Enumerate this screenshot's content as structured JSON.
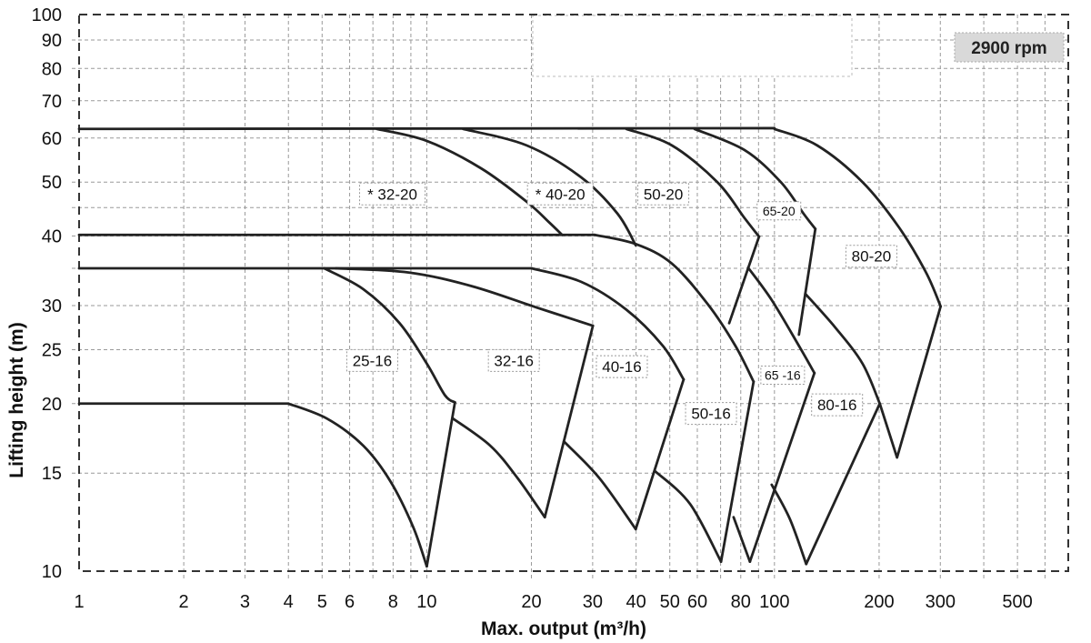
{
  "chart_data": {
    "type": "line",
    "title": "",
    "badge": "2900 rpm",
    "xlabel": "Max. output (m³/h)",
    "ylabel": "Lifting height (m)",
    "xscale": "log",
    "yscale": "log",
    "xlim": [
      1,
      700
    ],
    "ylim": [
      10,
      100
    ],
    "grid": true,
    "x_ticks": [
      1,
      2,
      3,
      4,
      5,
      6,
      8,
      10,
      20,
      30,
      40,
      50,
      60,
      80,
      100,
      200,
      300,
      500
    ],
    "x_tick_labels": [
      "1",
      "2",
      "3",
      "4",
      "5",
      "6",
      "8",
      "10",
      "20",
      "30",
      "40",
      "50",
      "60",
      "80",
      "100",
      "200",
      "300",
      "500"
    ],
    "x_grid": [
      2,
      3,
      4,
      5,
      6,
      7,
      8,
      9,
      10,
      20,
      30,
      40,
      50,
      60,
      70,
      80,
      90,
      100,
      200,
      300,
      400,
      500,
      600
    ],
    "y_ticks": [
      10,
      15,
      20,
      25,
      30,
      40,
      50,
      60,
      70,
      80,
      90,
      100
    ],
    "y_tick_labels": [
      "10",
      "15",
      "20",
      "25",
      "30",
      "40",
      "50",
      "60",
      "70",
      "80",
      "90",
      "100"
    ],
    "y_grid": [
      15,
      20,
      25,
      30,
      35,
      40,
      45,
      50,
      60,
      70,
      80,
      90
    ],
    "colors": {
      "curve": "#222222",
      "grid": "#9a9a9a",
      "frame": "#333333",
      "badge_bg": "#d9d9d9"
    },
    "series": [
      {
        "name": "plateau-62",
        "segments": [
          {
            "kind": "line",
            "points": [
              [
                1,
                62.3
              ],
              [
                100,
                62.5
              ]
            ]
          }
        ]
      },
      {
        "name": "plateau-40",
        "segments": [
          {
            "kind": "line",
            "points": [
              [
                1,
                40.2
              ],
              [
                30.4,
                40.2
              ]
            ]
          }
        ]
      },
      {
        "name": "plateau-35",
        "segments": [
          {
            "kind": "line",
            "points": [
              [
                1,
                35
              ],
              [
                20,
                35
              ]
            ]
          }
        ]
      },
      {
        "name": "plateau-20",
        "segments": [
          {
            "kind": "line",
            "points": [
              [
                1,
                20
              ],
              [
                4,
                20
              ]
            ]
          }
        ]
      },
      {
        "name": "32-20",
        "label": "* 32-20",
        "label_at": [
          7.96,
          47.6
        ],
        "segments": [
          {
            "kind": "curve",
            "points": [
              [
                7.18,
                62.3
              ],
              [
                10,
                59.3
              ],
              [
                14.35,
                52.9
              ],
              [
                19.38,
                46.1
              ],
              [
                22.52,
                42.3
              ],
              [
                24.5,
                40.2
              ]
            ]
          }
        ]
      },
      {
        "name": "40-20",
        "label": "* 40-20",
        "label_at": [
          24.2,
          47.6
        ],
        "segments": [
          {
            "kind": "curve",
            "points": [
              [
                12.72,
                62.3
              ],
              [
                19.38,
                58.2
              ],
              [
                27.8,
                51
              ],
              [
                35.35,
                43.9
              ],
              [
                39.9,
                38.5
              ]
            ]
          }
        ]
      },
      {
        "name": "50-20",
        "label": "50-20",
        "label_at": [
          47.9,
          47.6
        ],
        "segments": [
          {
            "kind": "curve",
            "points": [
              [
                37.5,
                62.3
              ],
              [
                50.7,
                58.2
              ],
              [
                68.5,
                50
              ],
              [
                82,
                43.1
              ],
              [
                90.3,
                39.9
              ]
            ]
          },
          {
            "kind": "line",
            "points": [
              [
                90.3,
                39.9
              ],
              [
                74.1,
                27.9
              ]
            ]
          }
        ]
      },
      {
        "name": "65-20",
        "label": "65-20",
        "label_at": [
          103,
          44.4
        ],
        "small": true,
        "segments": [
          {
            "kind": "curve",
            "points": [
              [
                58.9,
                62.3
              ],
              [
                82,
                57.1
              ],
              [
                104.3,
                50
              ],
              [
                121.2,
                43.9
              ],
              [
                131.1,
                41.2
              ]
            ]
          },
          {
            "kind": "line",
            "points": [
              [
                131.1,
                41.2
              ],
              [
                117.6,
                26.6
              ]
            ]
          }
        ]
      },
      {
        "name": "80-20",
        "label": "80-20",
        "label_at": [
          190,
          36.8
        ],
        "segments": [
          {
            "kind": "curve",
            "points": [
              [
                100,
                62.3
              ],
              [
                132.7,
                58.2
              ],
              [
                179.2,
                50
              ],
              [
                227.9,
                41.5
              ],
              [
                272.9,
                34.4
              ],
              [
                300.6,
                29.9
              ]
            ]
          },
          {
            "kind": "line",
            "points": [
              [
                300.6,
                29.9
              ],
              [
                225.2,
                16
              ],
              [
                200.9,
                20
              ]
            ]
          }
        ]
      },
      {
        "name": "25-16",
        "label": "25-16",
        "label_at": [
          6.97,
          23.9
        ],
        "segments": [
          {
            "kind": "curve",
            "points": [
              [
                5.07,
                35
              ],
              [
                6.57,
                32.1
              ],
              [
                8.35,
                27.9
              ],
              [
                10,
                23.6
              ],
              [
                11.28,
                20.7
              ],
              [
                12.05,
                20.1
              ]
            ]
          },
          {
            "kind": "line",
            "points": [
              [
                12.05,
                20.1
              ],
              [
                10,
                10.2
              ]
            ]
          },
          {
            "kind": "curve",
            "points": [
              [
                4,
                20
              ],
              [
                5.16,
                18.8
              ],
              [
                6.57,
                16.8
              ],
              [
                7.86,
                14.5
              ],
              [
                9.14,
                12.0
              ],
              [
                10,
                10.2
              ]
            ]
          }
        ]
      },
      {
        "name": "32-16",
        "label": "32-16",
        "label_at": [
          17.8,
          23.9
        ],
        "segments": [
          {
            "kind": "curve",
            "points": [
              [
                5.48,
                35
              ],
              [
                8.87,
                34.4
              ],
              [
                13.5,
                32.5
              ],
              [
                20.58,
                29.8
              ],
              [
                30.05,
                27.6
              ]
            ]
          },
          {
            "kind": "line",
            "points": [
              [
                30.05,
                27.6
              ],
              [
                21.85,
                12.5
              ]
            ]
          },
          {
            "kind": "curve",
            "points": [
              [
                11.9,
                18.8
              ],
              [
                15.23,
                16.8
              ],
              [
                18.24,
                14.7
              ],
              [
                21.85,
                12.5
              ]
            ]
          }
        ]
      },
      {
        "name": "40-16",
        "label": "40-16",
        "label_at": [
          36.4,
          23.3
        ],
        "segments": [
          {
            "kind": "curve",
            "points": [
              [
                20,
                35
              ],
              [
                27.8,
                33.1
              ],
              [
                37.5,
                29.5
              ],
              [
                47.75,
                25.4
              ],
              [
                54.8,
                22.1
              ]
            ]
          },
          {
            "kind": "line",
            "points": [
              [
                54.8,
                22.1
              ],
              [
                39.9,
                11.9
              ]
            ]
          },
          {
            "kind": "curve",
            "points": [
              [
                24.8,
                17.1
              ],
              [
                31.35,
                14.7
              ],
              [
                39.9,
                11.9
              ]
            ]
          }
        ]
      },
      {
        "name": "50-16",
        "label": "50-16",
        "label_at": [
          65.7,
          19.2
        ],
        "segments": [
          {
            "kind": "curve",
            "points": [
              [
                30.4,
                40.2
              ],
              [
                39.9,
                38.7
              ],
              [
                50.7,
                35.7
              ],
              [
                64.5,
                30.1
              ],
              [
                77.2,
                25.4
              ],
              [
                87.1,
                21.9
              ]
            ]
          },
          {
            "kind": "line",
            "points": [
              [
                87.1,
                21.9
              ],
              [
                70.2,
                10.4
              ]
            ]
          },
          {
            "kind": "curve",
            "points": [
              [
                45.5,
                15.1
              ],
              [
                57.2,
                13.2
              ],
              [
                70.2,
                10.4
              ]
            ]
          }
        ]
      },
      {
        "name": "65-16",
        "label": "65 -16",
        "label_at": [
          105.6,
          22.5
        ],
        "small": true,
        "segments": [
          {
            "kind": "curve",
            "points": [
              [
                84,
                35.1
              ],
              [
                98.2,
                30.7
              ],
              [
                117.6,
                25.4
              ],
              [
                130.3,
                22.7
              ]
            ]
          },
          {
            "kind": "line",
            "points": [
              [
                130.3,
                22.7
              ],
              [
                85,
                10.4
              ]
            ]
          },
          {
            "kind": "curve",
            "points": [
              [
                76.3,
                12.5
              ],
              [
                85,
                10.4
              ]
            ]
          }
        ]
      },
      {
        "name": "80-16",
        "label": "80-16",
        "label_at": [
          151.4,
          19.9
        ],
        "segments": [
          {
            "kind": "curve",
            "points": [
              [
                122.7,
                31.5
              ],
              [
                149.6,
                27.4
              ],
              [
                179.2,
                23.6
              ],
              [
                200.9,
                20
              ]
            ]
          },
          {
            "kind": "line",
            "points": [
              [
                200.9,
                20
              ],
              [
                123.4,
                10.3
              ]
            ]
          },
          {
            "kind": "curve",
            "points": [
              [
                98.2,
                14.3
              ],
              [
                110.8,
                12.4
              ],
              [
                123.4,
                10.3
              ]
            ]
          }
        ]
      }
    ]
  }
}
